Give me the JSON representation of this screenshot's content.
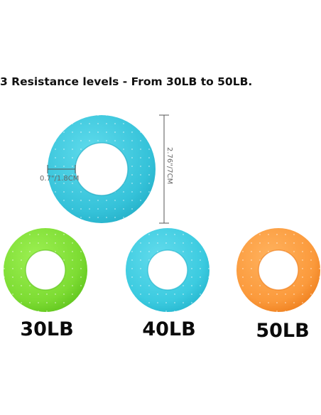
{
  "headline": "3 Resistance levels - From 30LB to 50LB.",
  "dimensions": {
    "thickness": "0.7\"/1.8CM",
    "diameter": "2.76\"/7CM"
  },
  "rings": [
    {
      "label": "30LB",
      "color": "#84e03a",
      "shade": "#5cc21a"
    },
    {
      "label": "40LB",
      "color": "#3fcde0",
      "shade": "#22b3cc"
    },
    {
      "label": "50LB",
      "color": "#fb9a3c",
      "shade": "#ef7c1a"
    }
  ],
  "hero_ring_color": "#39c6dc"
}
